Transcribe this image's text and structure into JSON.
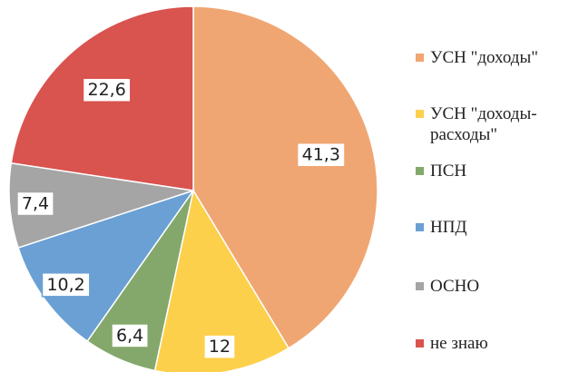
{
  "chart_data": {
    "type": "pie",
    "categories": [
      "УСН \"доходы\"",
      "УСН \"доходы-расходы\"",
      "ПСН",
      "НПД",
      "ОСНО",
      "не знаю"
    ],
    "values": [
      41.3,
      12,
      6.4,
      10.2,
      7.4,
      22.6
    ],
    "value_labels": [
      "41,3",
      "12",
      "6,4",
      "10,2",
      "7,4",
      "22,6"
    ],
    "colors": [
      "#f0a672",
      "#fdd04b",
      "#84a86b",
      "#6aa0d4",
      "#a5a5a5",
      "#d9534f"
    ],
    "legend": "right"
  }
}
